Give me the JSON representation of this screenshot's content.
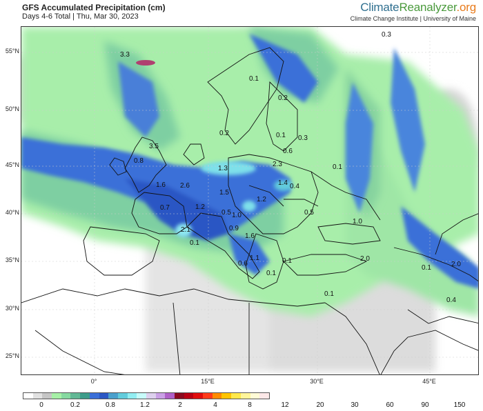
{
  "header": {
    "title": "GFS Accumulated Precipitation (cm)",
    "subtitle": "Days 4-6 Total | Thu, Mar 30, 2023",
    "brand_part1": "Climate",
    "brand_part2": "Reanalyzer",
    "brand_part3": ".org",
    "affiliation": "Climate Change Institute | University of Maine"
  },
  "map": {
    "lat_labels": [
      "55°N",
      "50°N",
      "45°N",
      "40°N",
      "35°N",
      "30°N",
      "25°N"
    ],
    "lon_labels": [
      "0°",
      "15°E",
      "30°E",
      "45°E"
    ],
    "value_labels": [
      "3.3",
      "0.3",
      "0.1",
      "0.2",
      "0.2",
      "0.1",
      "0.3",
      "3.5",
      "0.6",
      "0.8",
      "2.3",
      "1.3",
      "0.1",
      "1.6",
      "2.6",
      "1.4",
      "0.4",
      "1.5",
      "1.2",
      "0.7",
      "1.2",
      "0.5",
      "1.0",
      "0.5",
      "1.0",
      "2.1",
      "0.9",
      "1.6",
      "0.1",
      "0.6",
      "1.1",
      "0.1",
      "2.0",
      "0.1",
      "2.0",
      "0.1",
      "0.1",
      "0.4"
    ]
  },
  "colorbar": {
    "ticks": [
      "0",
      "0.2",
      "0.8",
      "1.2",
      "2",
      "4",
      "8",
      "12",
      "20",
      "30",
      "60",
      "90",
      "150"
    ],
    "colors": [
      "#ffffff",
      "#e1e1e1",
      "#c5c5c5",
      "#a6f0a6",
      "#86d9a0",
      "#62b895",
      "#3d9c8a",
      "#3a6fd8",
      "#2b57c4",
      "#4aa0cc",
      "#62ccdc",
      "#92eef2",
      "#c7fbfa",
      "#ddd0ee",
      "#caa0e6",
      "#b060c8",
      "#8a0a1e",
      "#b80012",
      "#e00d0d",
      "#ff3a1a",
      "#ff8a00",
      "#ffc400",
      "#ffe84a",
      "#fff59a",
      "#fffbd6",
      "#fde8e8"
    ]
  }
}
